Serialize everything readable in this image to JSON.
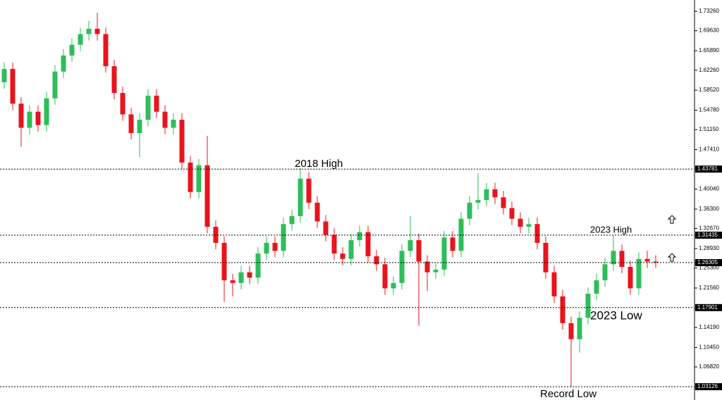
{
  "chart_data": {
    "type": "candlestick",
    "ylim": [
      1.0064,
      1.7537
    ],
    "yticks": [
      {
        "value": 1.7326,
        "label": "1.73260"
      },
      {
        "value": 1.6963,
        "label": "1.69630"
      },
      {
        "value": 1.6589,
        "label": "1.65890"
      },
      {
        "value": 1.6226,
        "label": "1.62260"
      },
      {
        "value": 1.5852,
        "label": "1.58520"
      },
      {
        "value": 1.5478,
        "label": "1.54780"
      },
      {
        "value": 1.5115,
        "label": "1.51150"
      },
      {
        "value": 1.4741,
        "label": "1.47410"
      },
      {
        "value": 1.4004,
        "label": "1.40040"
      },
      {
        "value": 1.363,
        "label": "1.36300"
      },
      {
        "value": 1.3267,
        "label": "1.32670"
      },
      {
        "value": 1.2893,
        "label": "1.28930"
      },
      {
        "value": 1.253,
        "label": "1.25300"
      },
      {
        "value": 1.2156,
        "label": "1.21560"
      },
      {
        "value": 1.1419,
        "label": "1.14190"
      },
      {
        "value": 1.1045,
        "label": "1.10450"
      },
      {
        "value": 1.0682,
        "label": "1.06820"
      }
    ],
    "levels": [
      1.43781,
      1.31435,
      1.26305,
      1.17901,
      1.03126
    ],
    "annotations": [
      "2018 High",
      "2023 High",
      "2023 Low",
      "Record Low"
    ],
    "up_color": "#2ebd59",
    "down_color": "#e8141c",
    "open": [
      1.6,
      1.625,
      1.56,
      1.515,
      1.545,
      1.52,
      1.57,
      1.62,
      1.65,
      1.67,
      1.69,
      1.7,
      1.69,
      1.63,
      1.58,
      1.54,
      1.505,
      1.53,
      1.575,
      1.545,
      1.515,
      1.53,
      1.45,
      1.395,
      1.445,
      1.33,
      1.3,
      1.23,
      1.225,
      1.245,
      1.235,
      1.28,
      1.3,
      1.285,
      1.335,
      1.35,
      1.42,
      1.375,
      1.34,
      1.315,
      1.28,
      1.27,
      1.305,
      1.32,
      1.275,
      1.26,
      1.215,
      1.225,
      1.285,
      1.305,
      1.265,
      1.245,
      1.25,
      1.31,
      1.285,
      1.345,
      1.375,
      1.38,
      1.4,
      1.385,
      1.365,
      1.345,
      1.33,
      1.335,
      1.3,
      1.245,
      1.2,
      1.15,
      1.12,
      1.16,
      1.205,
      1.23,
      1.26,
      1.285,
      1.255,
      1.215,
      1.27,
      1.265
    ],
    "high": [
      1.637,
      1.637,
      1.572,
      1.557,
      1.557,
      1.582,
      1.632,
      1.662,
      1.682,
      1.702,
      1.715,
      1.73,
      1.702,
      1.642,
      1.592,
      1.552,
      1.542,
      1.587,
      1.587,
      1.557,
      1.542,
      1.542,
      1.462,
      1.457,
      1.5,
      1.342,
      1.312,
      1.242,
      1.257,
      1.257,
      1.292,
      1.312,
      1.312,
      1.347,
      1.362,
      1.44,
      1.432,
      1.387,
      1.352,
      1.327,
      1.292,
      1.317,
      1.332,
      1.332,
      1.287,
      1.272,
      1.237,
      1.297,
      1.35,
      1.317,
      1.277,
      1.262,
      1.322,
      1.322,
      1.357,
      1.387,
      1.43,
      1.412,
      1.412,
      1.397,
      1.377,
      1.357,
      1.347,
      1.347,
      1.312,
      1.257,
      1.212,
      1.162,
      1.172,
      1.217,
      1.242,
      1.272,
      1.314,
      1.297,
      1.267,
      1.282,
      1.285,
      1.277
    ],
    "low": [
      1.588,
      1.548,
      1.48,
      1.503,
      1.508,
      1.508,
      1.558,
      1.608,
      1.638,
      1.658,
      1.678,
      1.678,
      1.618,
      1.568,
      1.528,
      1.493,
      1.46,
      1.518,
      1.533,
      1.503,
      1.503,
      1.438,
      1.383,
      1.383,
      1.318,
      1.288,
      1.19,
      1.2,
      1.213,
      1.223,
      1.223,
      1.268,
      1.273,
      1.273,
      1.323,
      1.338,
      1.363,
      1.328,
      1.303,
      1.268,
      1.258,
      1.258,
      1.293,
      1.263,
      1.248,
      1.203,
      1.203,
      1.213,
      1.273,
      1.145,
      1.21,
      1.233,
      1.238,
      1.273,
      1.273,
      1.333,
      1.363,
      1.368,
      1.373,
      1.353,
      1.333,
      1.318,
      1.318,
      1.288,
      1.233,
      1.188,
      1.138,
      1.031,
      1.095,
      1.148,
      1.193,
      1.218,
      1.248,
      1.243,
      1.203,
      1.203,
      1.253,
      1.253
    ],
    "close": [
      1.625,
      1.56,
      1.515,
      1.545,
      1.52,
      1.57,
      1.62,
      1.65,
      1.67,
      1.69,
      1.7,
      1.69,
      1.63,
      1.58,
      1.54,
      1.505,
      1.53,
      1.575,
      1.545,
      1.515,
      1.53,
      1.45,
      1.395,
      1.445,
      1.33,
      1.3,
      1.23,
      1.225,
      1.245,
      1.235,
      1.28,
      1.3,
      1.285,
      1.335,
      1.35,
      1.42,
      1.375,
      1.34,
      1.315,
      1.28,
      1.27,
      1.305,
      1.32,
      1.275,
      1.26,
      1.215,
      1.225,
      1.285,
      1.305,
      1.265,
      1.245,
      1.25,
      1.31,
      1.285,
      1.345,
      1.375,
      1.38,
      1.4,
      1.385,
      1.365,
      1.345,
      1.33,
      1.335,
      1.3,
      1.245,
      1.2,
      1.15,
      1.12,
      1.16,
      1.205,
      1.23,
      1.26,
      1.285,
      1.255,
      1.215,
      1.27,
      1.265,
      1.263
    ]
  }
}
